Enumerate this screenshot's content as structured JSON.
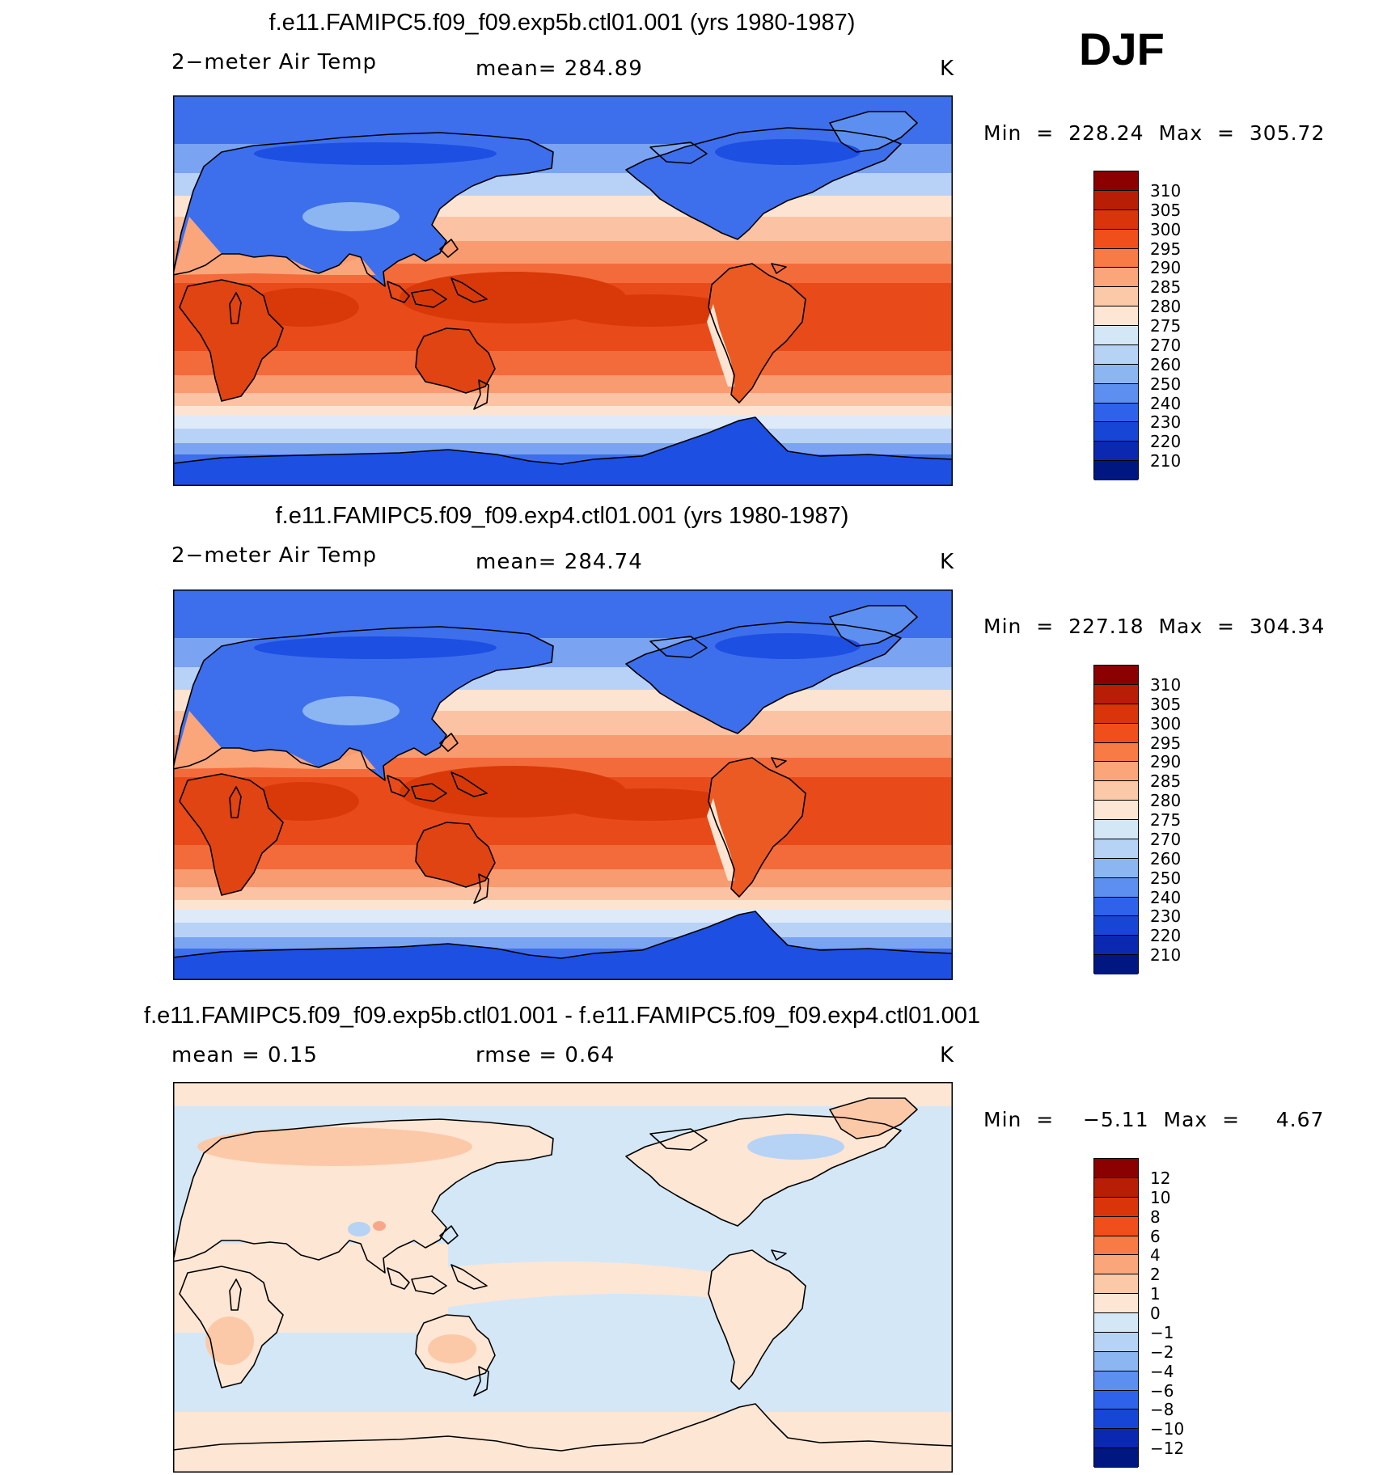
{
  "season": "DJF",
  "panels": [
    {
      "title": "f.e11.FAMIPC5.f09_f09.exp5b.ctl01.001 (yrs 1980-1987)",
      "left_text": "2−meter Air Temp",
      "mid_text": "mean=  284.89",
      "units": "K",
      "minmax": "Min  =  228.24  Max  =  305.72",
      "colorbar": {
        "labels": [
          "310",
          "305",
          "300",
          "295",
          "290",
          "285",
          "280",
          "275",
          "270",
          "260",
          "250",
          "240",
          "230",
          "220",
          "210"
        ],
        "colors": [
          "#8b0000",
          "#b81d05",
          "#d9340a",
          "#f04e1a",
          "#f87a44",
          "#fba57b",
          "#fcc9a8",
          "#fde6d4",
          "#d4e7f7",
          "#b6d2f5",
          "#8cb6f2",
          "#5d8ff0",
          "#2e62ea",
          "#1746d6",
          "#0a28b0",
          "#001680"
        ]
      },
      "map": {
        "type": "tas_mean",
        "colors": [
          "#1d4fe3",
          "#3d6fec",
          "#7aa3f2",
          "#b8d1f6",
          "#dfeaf9",
          "#fde4d2",
          "#fbc3a3",
          "#f99b70",
          "#f36b3a",
          "#e94a1a",
          "#d93909"
        ],
        "land_colors": [
          "#8cb6f2",
          "#fba57b",
          "#e04412",
          "#ec5a24",
          "#5d8ff0"
        ]
      }
    },
    {
      "title": "f.e11.FAMIPC5.f09_f09.exp4.ctl01.001 (yrs 1980-1987)",
      "left_text": "2−meter Air Temp",
      "mid_text": "mean=  284.74",
      "units": "K",
      "minmax": "Min  =  227.18  Max  =  304.34",
      "colorbar": {
        "labels": [
          "310",
          "305",
          "300",
          "295",
          "290",
          "285",
          "280",
          "275",
          "270",
          "260",
          "250",
          "240",
          "230",
          "220",
          "210"
        ],
        "colors": [
          "#8b0000",
          "#b81d05",
          "#d9340a",
          "#f04e1a",
          "#f87a44",
          "#fba57b",
          "#fcc9a8",
          "#fde6d4",
          "#d4e7f7",
          "#b6d2f5",
          "#8cb6f2",
          "#5d8ff0",
          "#2e62ea",
          "#1746d6",
          "#0a28b0",
          "#001680"
        ]
      },
      "map": {
        "type": "tas_mean",
        "colors": [
          "#1d4fe3",
          "#3d6fec",
          "#7aa3f2",
          "#b8d1f6",
          "#dfeaf9",
          "#fde4d2",
          "#fbc3a3",
          "#f99b70",
          "#f36b3a",
          "#e94a1a",
          "#d93909"
        ],
        "land_colors": [
          "#8cb6f2",
          "#fba57b",
          "#e04412",
          "#ec5a24",
          "#5d8ff0"
        ]
      }
    },
    {
      "title": "f.e11.FAMIPC5.f09_f09.exp5b.ctl01.001 - f.e11.FAMIPC5.f09_f09.exp4.ctl01.001",
      "left_text": "mean  =     0.15",
      "mid_text": "rmse  =     0.64",
      "units": "K",
      "minmax": "Min  =    −5.11  Max  =     4.67",
      "colorbar": {
        "labels": [
          "12",
          "10",
          "8",
          "6",
          "4",
          "2",
          "1",
          "0",
          "−1",
          "−2",
          "−4",
          "−6",
          "−8",
          "−10",
          "−12"
        ],
        "colors": [
          "#8b0000",
          "#b81d05",
          "#d9340a",
          "#f04e1a",
          "#f87a44",
          "#fba57b",
          "#fcc9a8",
          "#fde6d4",
          "#d4e7f7",
          "#b6d2f5",
          "#8cb6f2",
          "#5d8ff0",
          "#2e62ea",
          "#1746d6",
          "#0a28b0",
          "#001680"
        ]
      },
      "map": {
        "type": "tas_diff",
        "colors": [
          "#d4e7f7",
          "#fde6d4",
          "#fcc9a8",
          "#b6d2f5"
        ],
        "land_colors": [
          "#fcc9a8",
          "#fde6d4",
          "#f8a88a",
          "#b6d2f5"
        ]
      }
    }
  ]
}
